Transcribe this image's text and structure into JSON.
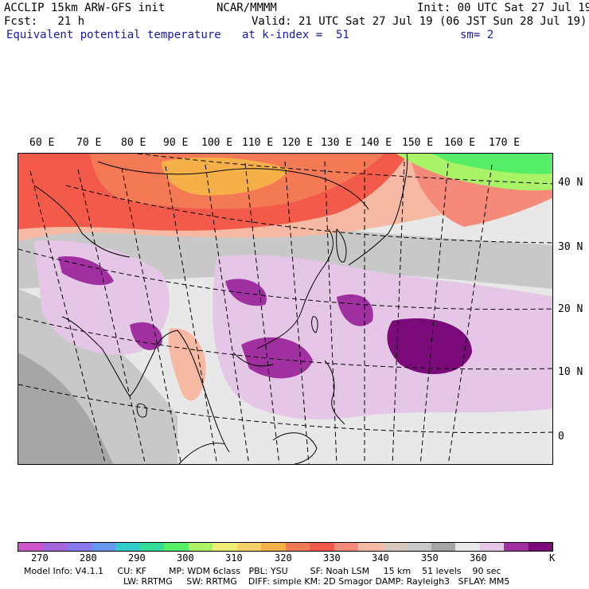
{
  "header": {
    "title": "ACCLIP 15km ARW-GFS init",
    "org": "NCAR/MMMM",
    "init": "Init: 00 UTC Sat 27 Jul 19",
    "fcst": "Fcst:   21 h",
    "valid": "Valid: 21 UTC Sat 27 Jul 19 (06 JST Sun 28 Jul 19)",
    "field": "Equivalent potential temperature",
    "level": "at k-index =  51",
    "smooth": "sm= 2"
  },
  "map": {
    "lon_labels": [
      "60 E",
      "70 E",
      "80 E",
      "90 E",
      "100 E",
      "110 E",
      "120 E",
      "130 E",
      "140 E",
      "150 E",
      "160 E",
      "170 E"
    ],
    "lat_labels": [
      "40 N",
      "30 N",
      "20 N",
      "10 N",
      "0"
    ]
  },
  "colorbar": {
    "colors": [
      "#cc55cc",
      "#a566dd",
      "#8877ee",
      "#6699ee",
      "#33cccc",
      "#33dd99",
      "#55ee66",
      "#aaf266",
      "#eeee77",
      "#f6d06a",
      "#f6b04a",
      "#f47a55",
      "#f45a4a",
      "#f68a7a",
      "#f6baa4",
      "#d8c8be",
      "#c8c8c8",
      "#a6a6a6",
      "#e8e8e8",
      "#e6c6e6",
      "#a030a0",
      "#7a0a7a"
    ],
    "ticks": [
      "270",
      "280",
      "290",
      "300",
      "310",
      "320",
      "330",
      "340",
      "350",
      "360",
      "K"
    ]
  },
  "model_info": {
    "line1": "Model Info: V4.1.1     CU: KF        MP: WDM 6class   PBL: YSU        SF: Noah LSM     15 km    51 levels    90 sec",
    "line2": "LW: RRTMG     SW: RRTMG    DIFF: simple KM: 2D Smagor DAMP: Rayleigh3   SFLAY: MM5"
  }
}
